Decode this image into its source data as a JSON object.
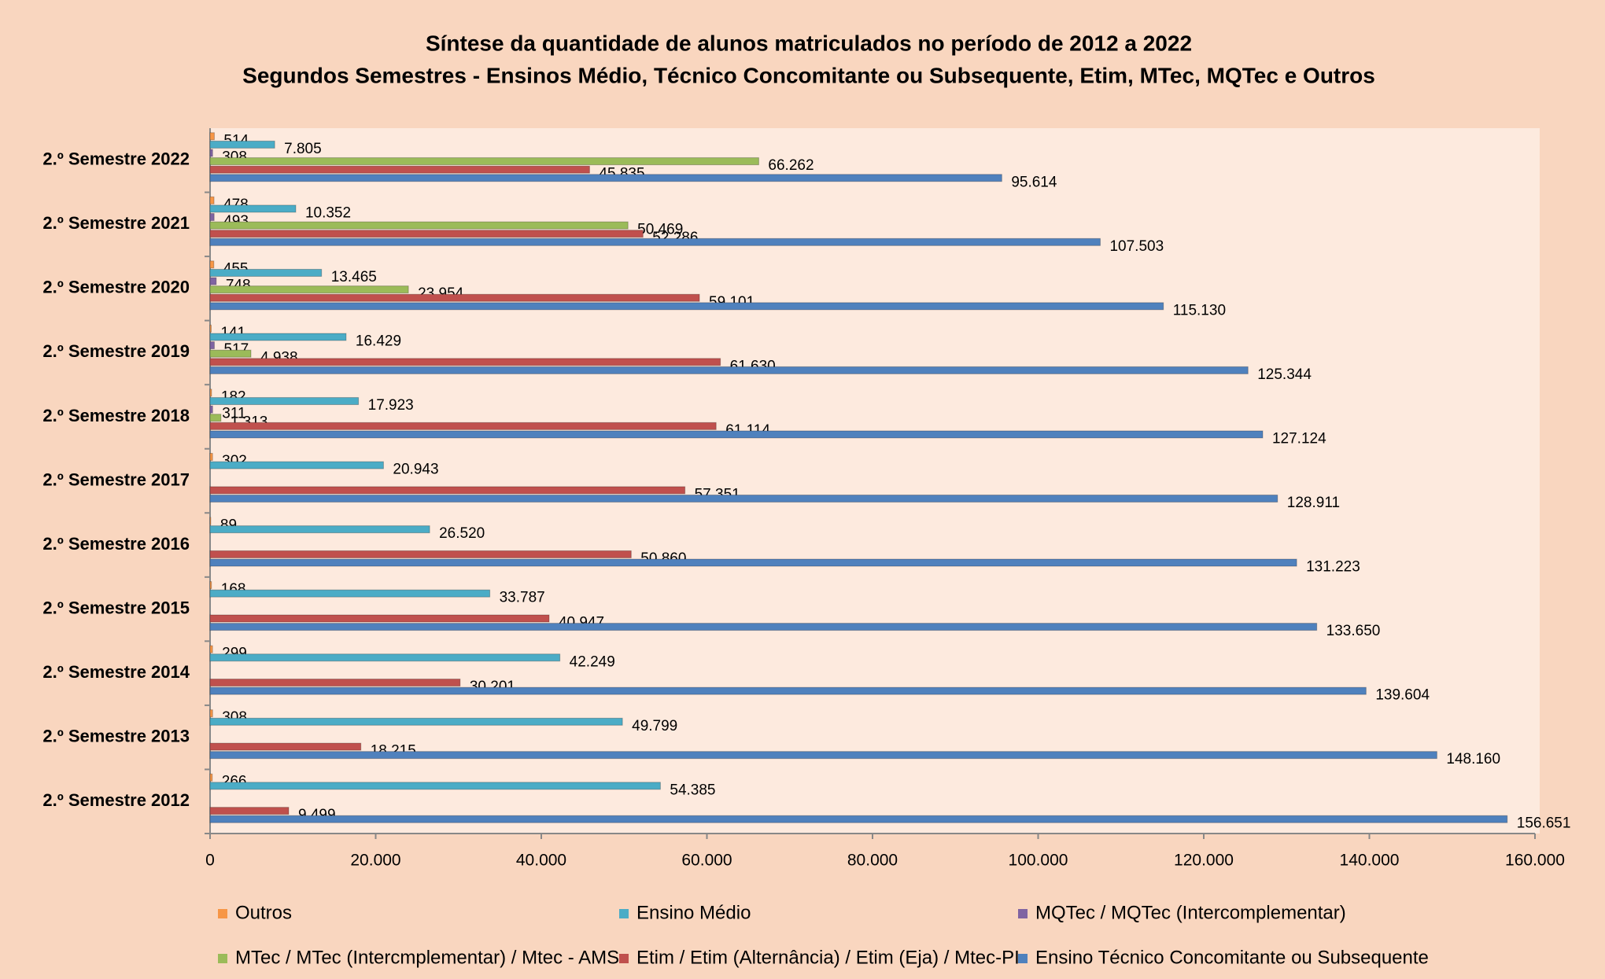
{
  "chart_data": {
    "type": "bar",
    "orientation": "horizontal",
    "title": "Síntese da quantidade de alunos matriculados no período de 2012 a 2022",
    "subtitle": "Segundos Semestres - Ensinos Médio, Técnico Concomitante ou Subsequente, Etim, MTec, MQTec e Outros",
    "categories": [
      "2.º Semestre 2012",
      "2.º Semestre 2013",
      "2.º Semestre 2014",
      "2.º Semestre 2015",
      "2.º Semestre 2016",
      "2.º Semestre 2017",
      "2.º Semestre 2018",
      "2.º Semestre 2019",
      "2.º Semestre 2020",
      "2.º Semestre 2021",
      "2.º Semestre 2022"
    ],
    "series": [
      {
        "name": "Outros",
        "color": "#f79646",
        "values": [
          266,
          308,
          299,
          168,
          89,
          302,
          182,
          141,
          455,
          478,
          514
        ]
      },
      {
        "name": "Ensino Médio",
        "color": "#4bacc6",
        "values": [
          54385,
          49799,
          42249,
          33787,
          26520,
          20943,
          17923,
          16429,
          13465,
          10352,
          7805
        ],
        "value_labels": [
          "54.385",
          "49.799",
          "42.249",
          "33.787",
          "26.520",
          "20.943",
          "17.923",
          "16.429",
          "13.465",
          "10.352",
          "7.805"
        ]
      },
      {
        "name": "MQTec / MQTec (Intercomplementar)",
        "color": "#8064a2",
        "values": [
          null,
          null,
          null,
          null,
          null,
          null,
          311,
          517,
          748,
          493,
          308
        ]
      },
      {
        "name": "MTec / MTec (Intercmplementar) / Mtec - AMS",
        "color": "#9bbb59",
        "values": [
          null,
          null,
          null,
          null,
          null,
          null,
          1313,
          4938,
          23954,
          50469,
          66262
        ],
        "value_labels": [
          null,
          null,
          null,
          null,
          null,
          null,
          "1.313",
          "4.938",
          "23.954",
          "50.469",
          "66.262"
        ]
      },
      {
        "name": "Etim / Etim (Alternância) / Etim (Eja) / Mtec-PI",
        "color": "#c0504d",
        "values": [
          9499,
          18215,
          30201,
          40947,
          50860,
          57351,
          61114,
          61630,
          59101,
          52286,
          45835
        ],
        "value_labels": [
          "9.499",
          "18.215",
          "30.201",
          "40.947",
          "50.860",
          "57.351",
          "61.114",
          "61.630",
          "59.101",
          "52.286",
          "45.835"
        ]
      },
      {
        "name": "Ensino Técnico Concomitante ou Subsequente",
        "color": "#4f81bd",
        "values": [
          156651,
          148160,
          139604,
          133650,
          131223,
          128911,
          127124,
          125344,
          115130,
          107503,
          95614
        ],
        "value_labels": [
          "156.651",
          "148.160",
          "139.604",
          "133.650",
          "131.223",
          "128.911",
          "127.124",
          "125.344",
          "115.130",
          "107.503",
          "95.614"
        ]
      }
    ],
    "xlim": [
      0,
      160000
    ],
    "xticks": [
      0,
      {
        "value": 20000,
        "label": "20.000"
      },
      {
        "value": 40000,
        "label": "40.000"
      },
      {
        "value": 60000,
        "label": "60.000"
      },
      {
        "value": 80000,
        "label": "80.000"
      },
      {
        "value": 100000,
        "label": "100.000"
      },
      {
        "value": 120000,
        "label": "120.000"
      },
      {
        "value": 140000,
        "label": "140.000"
      },
      {
        "value": 160000,
        "label": "160.000"
      }
    ],
    "grid": false,
    "legend": "bottom"
  }
}
